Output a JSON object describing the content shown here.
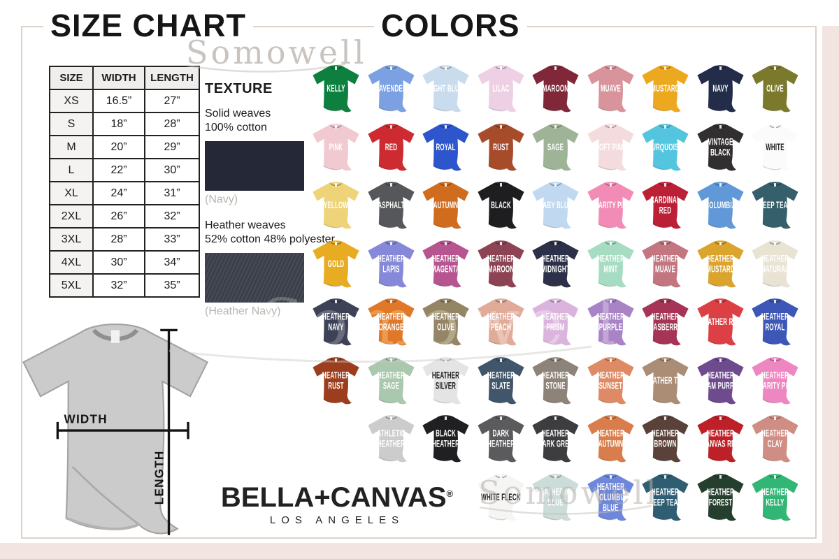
{
  "page": {
    "size_chart_title": "SIZE CHART",
    "colors_title": "COLORS",
    "watermark": "Somowell"
  },
  "size_table": {
    "headers": [
      "SIZE",
      "WIDTH",
      "LENGTH"
    ],
    "rows": [
      [
        "XS",
        "16.5”",
        "27”"
      ],
      [
        "S",
        "18”",
        "28”"
      ],
      [
        "M",
        "20”",
        "29”"
      ],
      [
        "L",
        "22”",
        "30”"
      ],
      [
        "XL",
        "24”",
        "31”"
      ],
      [
        "2XL",
        "26”",
        "32”"
      ],
      [
        "3XL",
        "28”",
        "33”"
      ],
      [
        "4XL",
        "30”",
        "34”"
      ],
      [
        "5XL",
        "32”",
        "35”"
      ]
    ]
  },
  "texture": {
    "heading": "TEXTURE",
    "solid_line1": "Solid weaves",
    "solid_line2": "100% cotton",
    "solid_caption": "(Navy)",
    "solid_hex": "#252837",
    "heather_line1": "Heather weaves",
    "heather_line2": "52% cotton 48% polyester",
    "heather_caption": "(Heather Navy)",
    "heather_hex": "#3a3f4a"
  },
  "measurement": {
    "width_label": "WIDTH",
    "length_label": "LENGTH"
  },
  "brand": {
    "name": "BELLA+CANVAS",
    "registered": "®",
    "city": "LOS ANGELES"
  },
  "colors_grid": {
    "rows": [
      {
        "shirts": [
          {
            "name": "KELLY",
            "hex": "#0d8040",
            "text": "#ffffff"
          },
          {
            "name": "LAVENDER",
            "hex": "#7ba1e3",
            "text": "#ffffff"
          },
          {
            "name": "LIGHT BLUE",
            "hex": "#c8dcee",
            "text": "#ffffff"
          },
          {
            "name": "LILAC",
            "hex": "#eed0e4",
            "text": "#ffffff"
          },
          {
            "name": "MAROON",
            "hex": "#802839",
            "text": "#ffffff"
          },
          {
            "name": "MUAVE",
            "hex": "#d8939b",
            "text": "#ffffff"
          },
          {
            "name": "MUSTARD",
            "hex": "#eca81e",
            "text": "#ffffff"
          },
          {
            "name": "NAVY",
            "hex": "#232c49",
            "text": "#ffffff"
          },
          {
            "name": "OLIVE",
            "hex": "#7b7a2c",
            "text": "#ffffff"
          }
        ]
      },
      {
        "shirts": [
          {
            "name": "PINK",
            "hex": "#f0cad0",
            "text": "#ffffff"
          },
          {
            "name": "RED",
            "hex": "#cd2a31",
            "text": "#ffffff"
          },
          {
            "name": "ROYAL",
            "hex": "#2d55cc",
            "text": "#ffffff"
          },
          {
            "name": "RUST",
            "hex": "#a74c2b",
            "text": "#ffffff"
          },
          {
            "name": "SAGE",
            "hex": "#9fb496",
            "text": "#ffffff"
          },
          {
            "name": "SOFT PINK",
            "hex": "#f4dcde",
            "text": "#ffffff"
          },
          {
            "name": "TURQUOISE",
            "hex": "#54c5df",
            "text": "#ffffff"
          },
          {
            "name": "VINTAGE BLACK",
            "hex": "#312f30",
            "text": "#ffffff"
          },
          {
            "name": "WHITE",
            "hex": "#fbfbfb",
            "text": "#1a1a1a"
          }
        ]
      },
      {
        "shirts": [
          {
            "name": "YELLOW",
            "hex": "#eed378",
            "text": "#ffffff"
          },
          {
            "name": "ASPHALT",
            "hex": "#55575a",
            "text": "#ffffff"
          },
          {
            "name": "AUTUMN",
            "hex": "#d06c1e",
            "text": "#ffffff"
          },
          {
            "name": "BLACK",
            "hex": "#1e1e20",
            "text": "#ffffff"
          },
          {
            "name": "BABY BLUE",
            "hex": "#c0d8f0",
            "text": "#ffffff"
          },
          {
            "name": "CHARITY PINK",
            "hex": "#f28cb6",
            "text": "#ffffff"
          },
          {
            "name": "CARDINAL RED",
            "hex": "#bb2037",
            "text": "#ffffff"
          },
          {
            "name": "COLUMBIA",
            "hex": "#6199d8",
            "text": "#ffffff"
          },
          {
            "name": "DEEP TEAL",
            "hex": "#355f6b",
            "text": "#ffffff"
          }
        ]
      },
      {
        "shirts": [
          {
            "name": "GOLD",
            "hex": "#e8ac22",
            "text": "#ffffff"
          },
          {
            "name": "HEATHER LAPIS",
            "hex": "#8689d9",
            "text": "#ffffff"
          },
          {
            "name": "HEATHER MAGENTA",
            "hex": "#b75590",
            "text": "#ffffff"
          },
          {
            "name": "HEATHER MAROON",
            "hex": "#8e4355",
            "text": "#ffffff"
          },
          {
            "name": "HEATHER MIDNIGHT",
            "hex": "#2c3048",
            "text": "#ffffff"
          },
          {
            "name": "HEATHER MINT",
            "hex": "#a6dcc2",
            "text": "#ffffff"
          },
          {
            "name": "HEATHER MUAVE",
            "hex": "#c37580",
            "text": "#ffffff"
          },
          {
            "name": "HEATHER MUSTARD",
            "hex": "#dba42c",
            "text": "#ffffff"
          },
          {
            "name": "HEATHER NATURAL",
            "hex": "#e9e3d4",
            "text": "#ffffff"
          }
        ]
      },
      {
        "shirts": [
          {
            "name": "HEATHER NAVY",
            "hex": "#3e4257",
            "text": "#ffffff"
          },
          {
            "name": "HEATHER ORANGE",
            "hex": "#e0782a",
            "text": "#ffffff"
          },
          {
            "name": "HEATHER OLIVE",
            "hex": "#948565",
            "text": "#ffffff"
          },
          {
            "name": "HEATHER PEACH",
            "hex": "#e0ab99",
            "text": "#ffffff"
          },
          {
            "name": "HEATHER PRISM",
            "hex": "#dab4dd",
            "text": "#ffffff"
          },
          {
            "name": "HEATHER PURPLE",
            "hex": "#a884c6",
            "text": "#ffffff"
          },
          {
            "name": "HEATHER RASBERRY",
            "hex": "#a53456",
            "text": "#ffffff"
          },
          {
            "name": "HEATHER RED",
            "hex": "#dc4045",
            "text": "#ffffff"
          },
          {
            "name": "HEATHER ROYAL",
            "hex": "#3d57b7",
            "text": "#ffffff"
          }
        ]
      },
      {
        "shirts": [
          {
            "name": "HEATHER RUST",
            "hex": "#9c3e1d",
            "text": "#ffffff"
          },
          {
            "name": "HEATHER SAGE",
            "hex": "#aac8ad",
            "text": "#ffffff"
          },
          {
            "name": "HEATHER SILVER",
            "hex": "#e4e4e4",
            "text": "#1a1a1a"
          },
          {
            "name": "HEATHER SLATE",
            "hex": "#41566b",
            "text": "#ffffff"
          },
          {
            "name": "HEATHER STONE",
            "hex": "#8e8379",
            "text": "#ffffff"
          },
          {
            "name": "HEATHER SUNSET",
            "hex": "#de8a64",
            "text": "#ffffff"
          },
          {
            "name": "HEATHER TAN",
            "hex": "#ab8d75",
            "text": "#ffffff"
          },
          {
            "name": "HEATHER TEAM PURPLE",
            "hex": "#6e4a8e",
            "text": "#ffffff"
          },
          {
            "name": "HEATHER CHARITY PINK",
            "hex": "#ee86c2",
            "text": "#ffffff"
          }
        ]
      },
      {
        "shirts": [
          {
            "name": "ATHLETIC HEATHER",
            "hex": "#cccccc",
            "text": "#ffffff"
          },
          {
            "name": "BLACK HEATHER",
            "hex": "#202022",
            "text": "#ffffff"
          },
          {
            "name": "DARK HEATHER",
            "hex": "#5b5b5d",
            "text": "#ffffff"
          },
          {
            "name": "HEATHER DARK GREY",
            "hex": "#3d3d3f",
            "text": "#ffffff"
          },
          {
            "name": "HEATHER AUTUMN",
            "hex": "#d87d4b",
            "text": "#ffffff"
          },
          {
            "name": "HEATHER BROWN",
            "hex": "#5a423a",
            "text": "#ffffff"
          },
          {
            "name": "HEATHER CANVAS RED",
            "hex": "#bd2127",
            "text": "#ffffff"
          },
          {
            "name": "HEATHER CLAY",
            "hex": "#d08d84",
            "text": "#ffffff"
          }
        ]
      },
      {
        "shirts": [
          {
            "name": "WHITE FLECK",
            "hex": "#f5f5f3",
            "text": "#1a1a1a"
          },
          {
            "name": "HEATHER ICE BLUE",
            "hex": "#cbdcd9",
            "text": "#ffffff"
          },
          {
            "name": "HEATHER COLUMBIA BLUE",
            "hex": "#6e87da",
            "text": "#ffffff"
          },
          {
            "name": "HEATHER DEEP TEAL",
            "hex": "#2f5e73",
            "text": "#ffffff"
          },
          {
            "name": "HEATHER FOREST",
            "hex": "#253f2f",
            "text": "#ffffff"
          },
          {
            "name": "HEATHER KELLY",
            "hex": "#32b675",
            "text": "#ffffff"
          }
        ]
      }
    ]
  }
}
